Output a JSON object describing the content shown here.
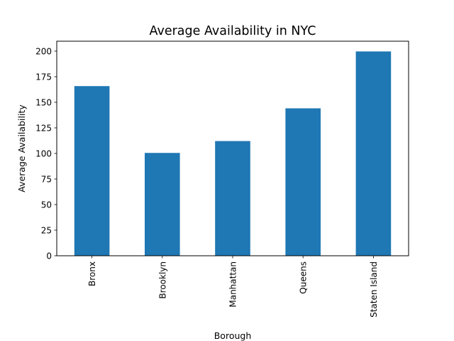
{
  "chart_data": {
    "type": "bar",
    "title": "Average Availability in NYC",
    "xlabel": "Borough",
    "ylabel": "Average Availability",
    "categories": [
      "Bronx",
      "Brooklyn",
      "Manhattan",
      "Queens",
      "Staten Island"
    ],
    "values": [
      165.8,
      100.5,
      112.1,
      144.1,
      199.7
    ],
    "ylim": [
      0,
      209.7
    ],
    "yticks": [
      0,
      25,
      50,
      75,
      100,
      125,
      150,
      175,
      200
    ],
    "bar_color": "#1f77b4",
    "grid": false,
    "legend": "none"
  }
}
